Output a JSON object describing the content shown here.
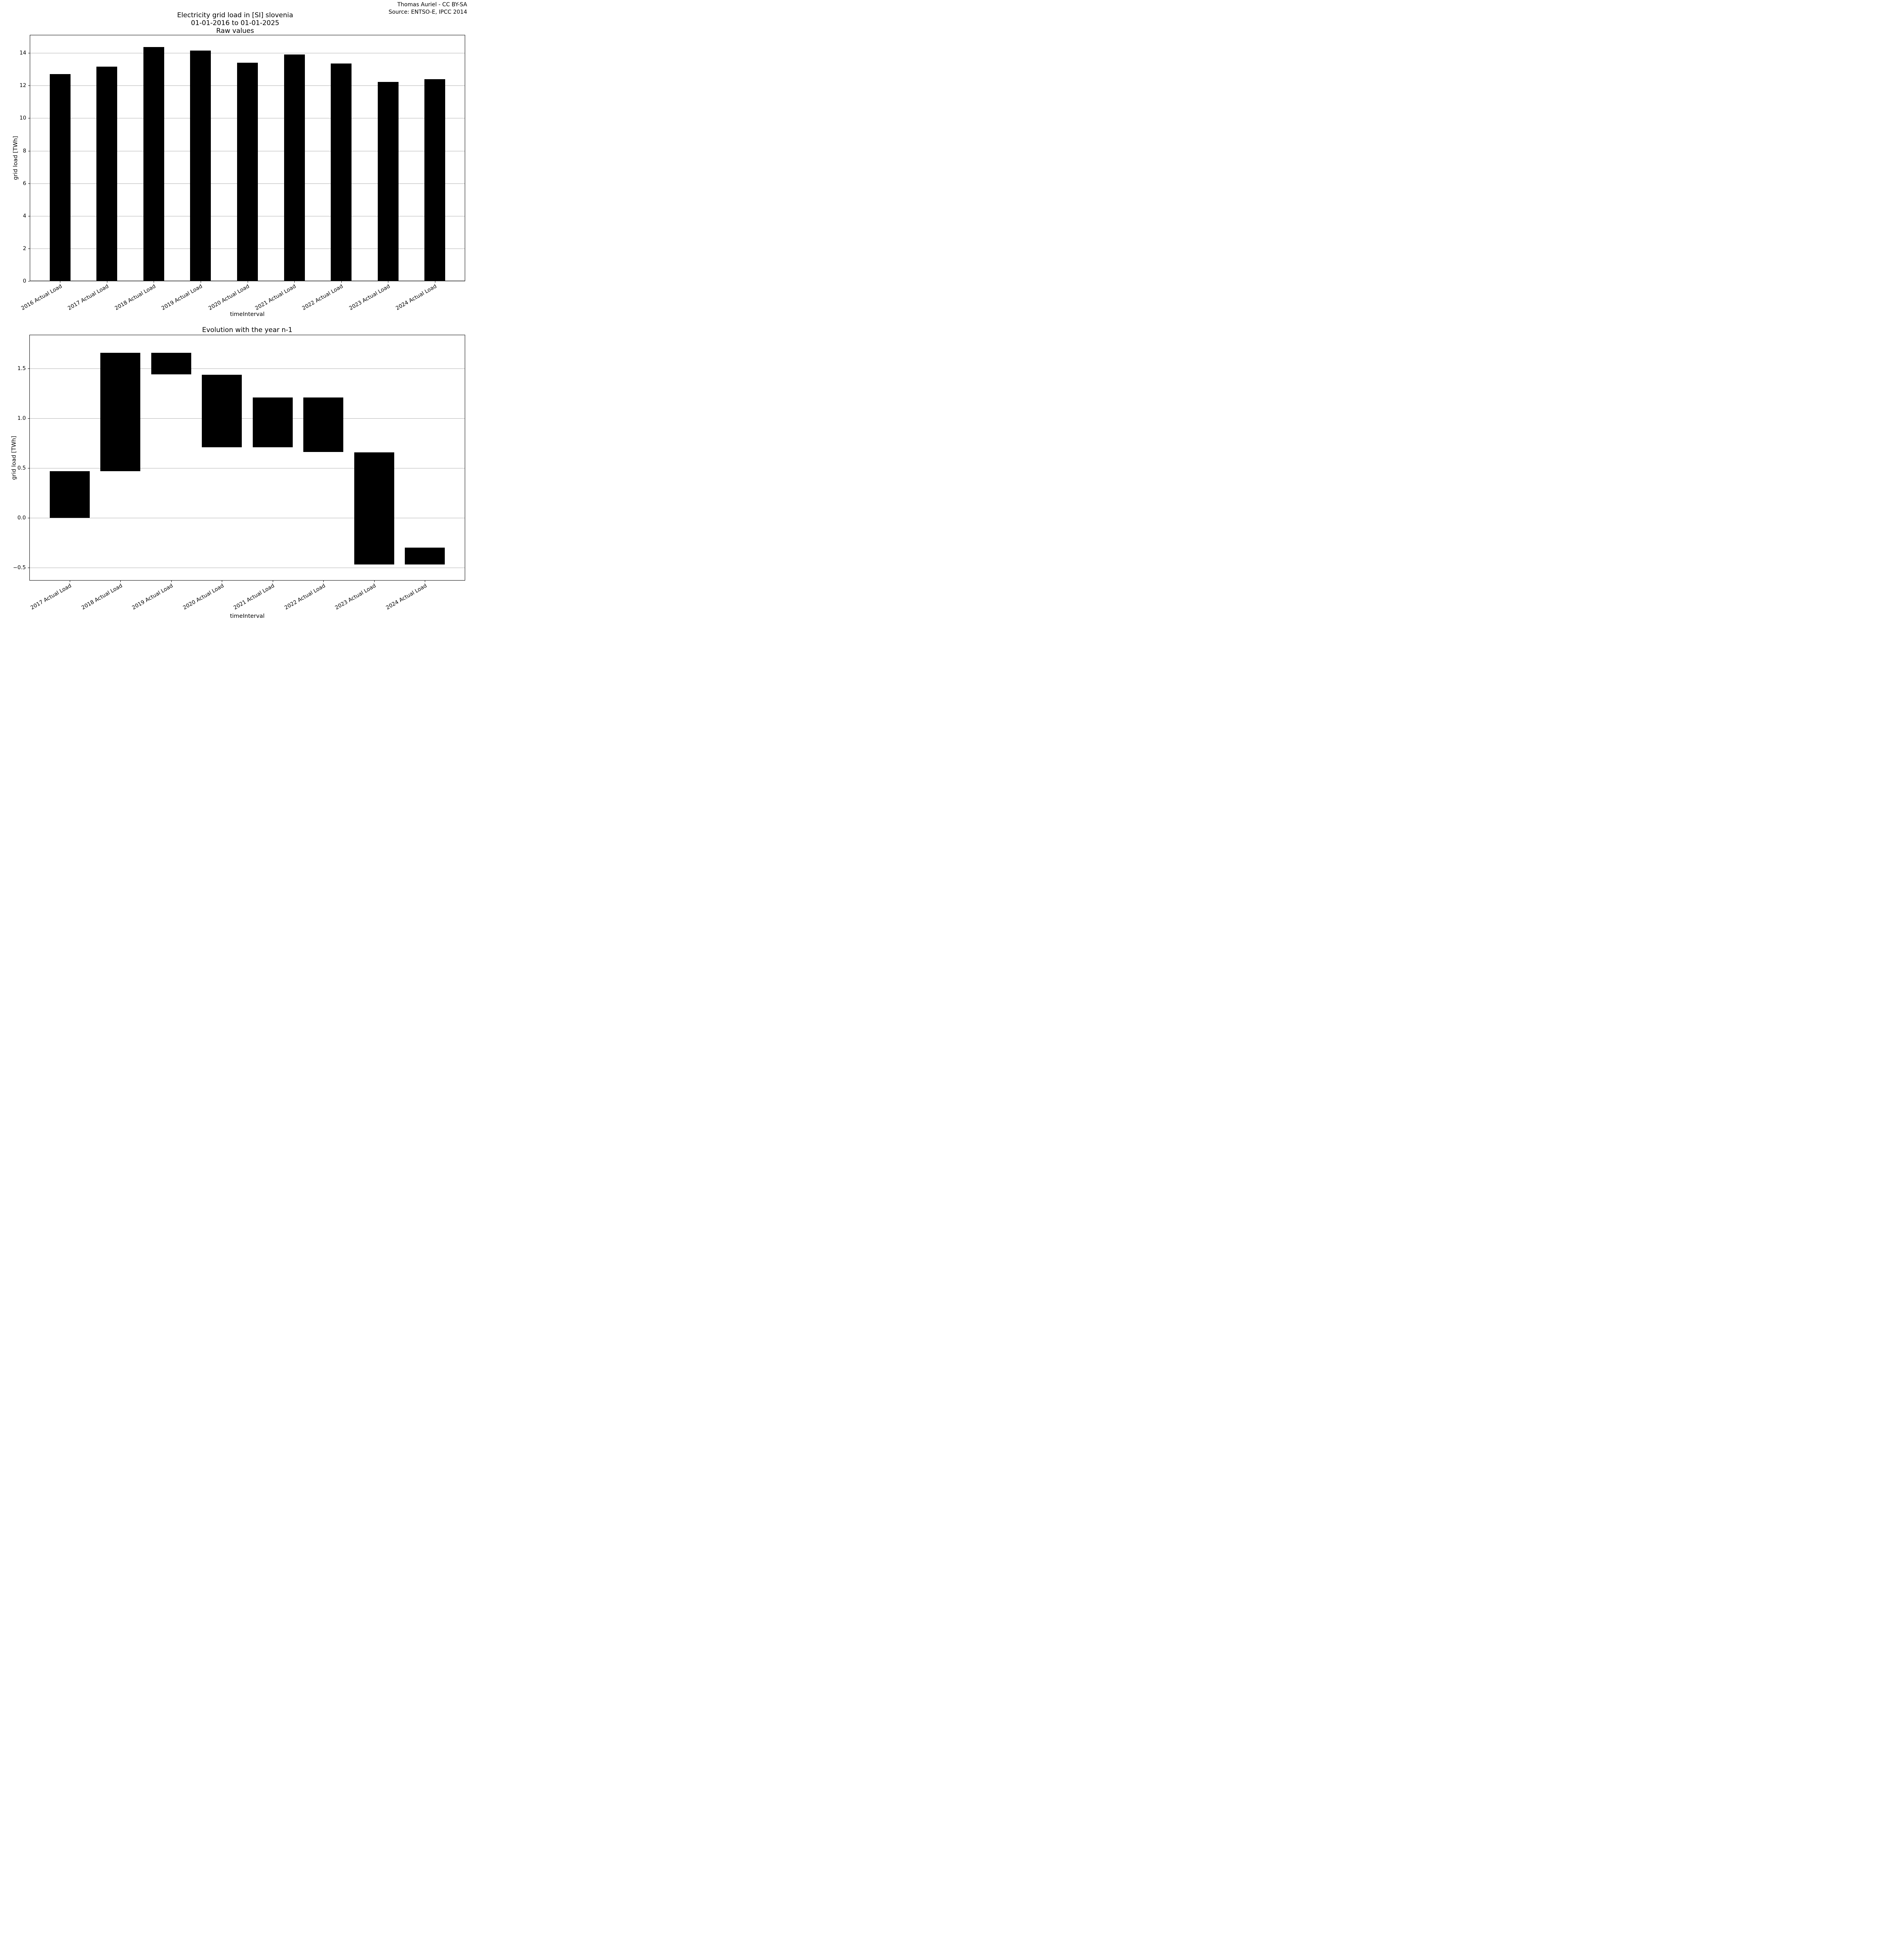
{
  "figure": {
    "suptitle_lines": [
      "Electricity grid load in [SI] slovenia",
      "01-01-2016 to 01-01-2025"
    ],
    "attribution_lines": [
      "Thomas Auriel - CC BY-SA",
      "Source: ENTSO-E, IPCC 2014"
    ],
    "background_color": "#ffffff",
    "bar_color": "#000000",
    "grid_color": "#b2b2b2"
  },
  "chart_data": [
    {
      "id": "raw-values",
      "type": "bar",
      "title": "Raw values",
      "xlabel": "timeInterval",
      "ylabel": "grid load [TWh]",
      "categories": [
        "2016 Actual Load",
        "2017 Actual Load",
        "2018 Actual Load",
        "2019 Actual Load",
        "2020 Actual Load",
        "2021 Actual Load",
        "2022 Actual Load",
        "2023 Actual Load",
        "2024 Actual Load"
      ],
      "values": [
        12.7,
        13.17,
        14.36,
        14.14,
        13.41,
        13.91,
        13.36,
        12.23,
        12.4
      ],
      "unit": "TWh",
      "ylim": [
        0,
        15.11
      ],
      "yticks": [
        0,
        2,
        4,
        6,
        8,
        10,
        12,
        14
      ],
      "ytick_labels": [
        "0",
        "2",
        "4",
        "6",
        "8",
        "10",
        "12",
        "14"
      ],
      "grid": true,
      "legend": "none",
      "x_tick_rotation_deg": 30
    },
    {
      "id": "evolution-n-1",
      "type": "bar",
      "subtype": "floating-waterfall",
      "title": "Evolution with the year n-1",
      "xlabel": "timeInterval",
      "ylabel": "grid load [TWh]",
      "categories": [
        "2017 Actual Load",
        "2018 Actual Load",
        "2019 Actual Load",
        "2020 Actual Load",
        "2021 Actual Load",
        "2022 Actual Load",
        "2023 Actual Load",
        "2024 Actual Load"
      ],
      "bar_ranges": [
        [
          0.0,
          0.47
        ],
        [
          0.47,
          1.66
        ],
        [
          1.44,
          1.66
        ],
        [
          0.71,
          1.44
        ],
        [
          0.71,
          1.21
        ],
        [
          0.66,
          1.21
        ],
        [
          -0.47,
          0.66
        ],
        [
          -0.47,
          -0.3
        ]
      ],
      "unit": "TWh",
      "ylim": [
        -0.63,
        1.84
      ],
      "yticks": [
        1.5,
        1.0,
        0.5,
        0.0,
        -0.5
      ],
      "ytick_labels": [
        "1.5",
        "1.0",
        "0.5",
        "0.0",
        "−0.5"
      ],
      "grid": true,
      "legend": "none",
      "x_tick_rotation_deg": 30
    }
  ]
}
